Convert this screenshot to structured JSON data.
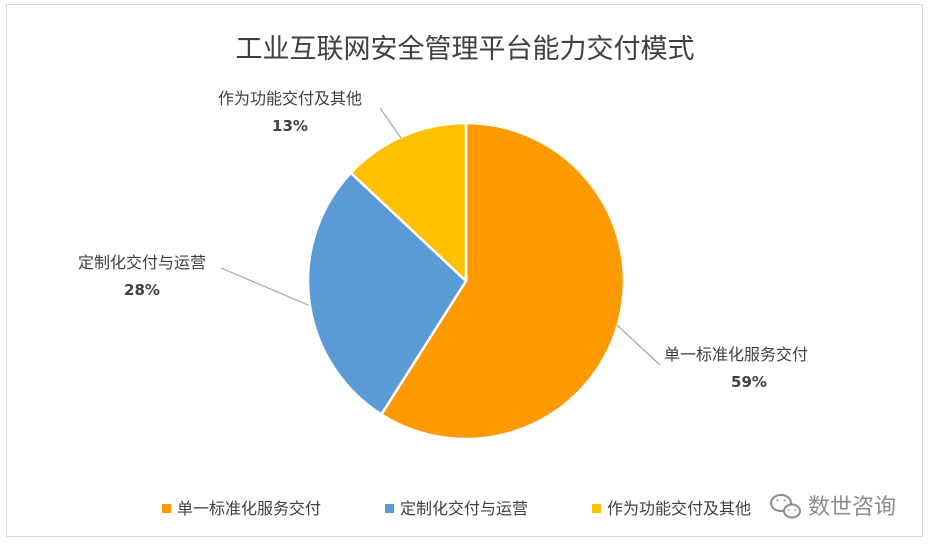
{
  "chart_data": {
    "type": "pie",
    "title": "工业互联网安全管理平台能力交付模式",
    "start_angle_deg": 0,
    "direction": "clockwise",
    "slices": [
      {
        "label": "单一标准化服务交付",
        "value": 59,
        "display": "59%",
        "color": "#ff9900"
      },
      {
        "label": "定制化交付与运营",
        "value": 28,
        "display": "28%",
        "color": "#5b9bd5"
      },
      {
        "label": "作为功能交付及其他",
        "value": 13,
        "display": "13%",
        "color": "#ffc000"
      }
    ],
    "legend": {
      "position": "bottom",
      "entries": [
        "单一标准化服务交付",
        "定制化交付与运营",
        "作为功能交付及其他"
      ]
    },
    "leader_line_color": "#a6a6a6"
  },
  "watermark": {
    "text": "数世咨询",
    "icon": "wechat-icon"
  }
}
